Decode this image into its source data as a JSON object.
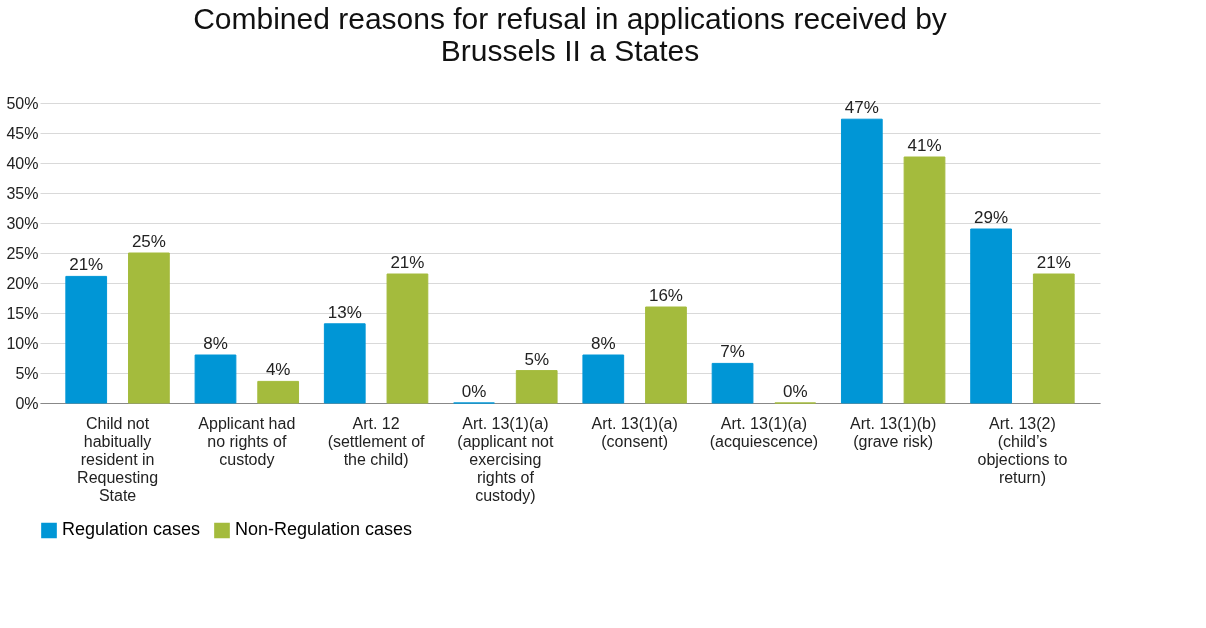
{
  "chart_data": {
    "type": "bar",
    "title": [
      "Combined reasons for refusal in applications received by",
      "Brussels II a States"
    ],
    "categories": [
      "Child not habitually resident in Requesting State",
      "Applicant had no rights of custody",
      "Art. 12 (settlement of the child)",
      "Art. 13(1)(a) (applicant not exercising rights of custody)",
      "Art. 13(1)(a) (consent)",
      "Art. 13(1)(a) (acquiescence)",
      "Art. 13(1)(b) (grave risk)",
      "Art. 13(2) (child’s objections to return)"
    ],
    "series": [
      {
        "name": "Regulation cases",
        "color": "#0096d6",
        "values": [
          21.1,
          8,
          13.2,
          0,
          8,
          6.6,
          47.3,
          29
        ],
        "value_labels": [
          "21%",
          "8%",
          "13%",
          "0%",
          "8%",
          "7%",
          "47%",
          "29%"
        ]
      },
      {
        "name": "Non-Regulation cases",
        "color": "#a4bb3d",
        "values": [
          25,
          3.6,
          21.5,
          5.4,
          16,
          0,
          41,
          21.5
        ],
        "value_labels": [
          "25%",
          "4%",
          "21%",
          "5%",
          "16%",
          "0%",
          "41%",
          "21%"
        ]
      }
    ],
    "ylim": [
      0,
      50
    ],
    "yticks": [
      {
        "value": 0,
        "label": "0%"
      },
      {
        "value": 5,
        "label": "5%"
      },
      {
        "value": 10,
        "label": "10%"
      },
      {
        "value": 15,
        "label": "15%"
      },
      {
        "value": 20,
        "label": "20%"
      },
      {
        "value": 25,
        "label": "25%"
      },
      {
        "value": 30,
        "label": "30%"
      },
      {
        "value": 35,
        "label": "35%"
      },
      {
        "value": 40,
        "label": "40%"
      },
      {
        "value": 45,
        "label": "45%"
      },
      {
        "value": 50,
        "label": "50%"
      }
    ],
    "grid": "y",
    "legend": "bottom"
  }
}
